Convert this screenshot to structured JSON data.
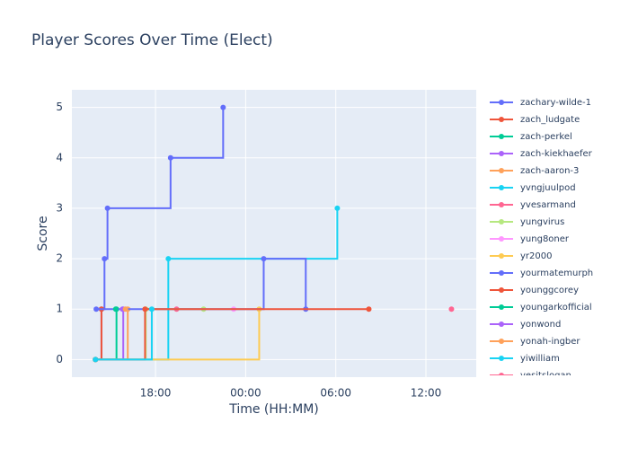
{
  "chart_data": {
    "type": "line",
    "line_shape": "hv",
    "title": "Player Scores Over Time (Elect)",
    "x_label": "Time (HH:MM)",
    "y_label": "Score",
    "xlim": [
      12.43,
      39.35
    ],
    "ylim": [
      -0.35,
      5.35
    ],
    "xticks": [
      {
        "value": 18,
        "label": "18:00"
      },
      {
        "value": 24,
        "label": "00:00"
      },
      {
        "value": 30,
        "label": "06:00"
      },
      {
        "value": 36,
        "label": "12:00"
      }
    ],
    "yticks": [
      0,
      1,
      2,
      3,
      4,
      5
    ],
    "grid": true,
    "legend": "right",
    "series": [
      {
        "name": "zachary-wilde-1",
        "color": "#636efa",
        "x": [
          14.0,
          14.4,
          14.6,
          14.8,
          19.0,
          22.5
        ],
        "values": [
          0,
          1,
          2,
          3,
          4,
          5
        ]
      },
      {
        "name": "zach_ludgate",
        "color": "#EF553B",
        "x": [
          14.0,
          14.4
        ],
        "values": [
          0,
          1
        ]
      },
      {
        "name": "zach-perkel",
        "color": "#00cc96",
        "x": [
          14.0,
          15.4
        ],
        "values": [
          0,
          1
        ]
      },
      {
        "name": "zach-kiekhaefer",
        "color": "#ab63fa",
        "x": [
          14.0,
          15.85
        ],
        "values": [
          0,
          1
        ]
      },
      {
        "name": "zach-aaron-3",
        "color": "#FFA15A",
        "x": [
          14.0,
          16.15
        ],
        "values": [
          0,
          1
        ]
      },
      {
        "name": "yvngjuulpod",
        "color": "#19d3f3",
        "x": [
          14.0,
          18.85,
          30.1
        ],
        "values": [
          0,
          2,
          3
        ]
      },
      {
        "name": "yvesarmand",
        "color": "#FF6692",
        "x": [
          19.4
        ],
        "values": [
          1
        ]
      },
      {
        "name": "yungvirus",
        "color": "#B6E880",
        "x": [
          14.0,
          17.35,
          21.2
        ],
        "values": [
          0,
          1,
          1
        ]
      },
      {
        "name": "yung8oner",
        "color": "#FF97FF",
        "x": [
          23.2
        ],
        "values": [
          1
        ]
      },
      {
        "name": "yr2000",
        "color": "#FECB52",
        "x": [
          14.0,
          24.9
        ],
        "values": [
          0,
          1
        ]
      },
      {
        "name": "yourmatemurph",
        "color": "#636efa",
        "x": [
          14.05,
          25.2,
          28.0
        ],
        "values": [
          1,
          2,
          1
        ]
      },
      {
        "name": "younggcorey",
        "color": "#EF553B",
        "x": [
          14.0,
          17.3,
          32.2
        ],
        "values": [
          0,
          1,
          1
        ]
      },
      {
        "name": "youngarkofficial",
        "color": "#00cc96",
        "x": [
          15.35
        ],
        "values": [
          1
        ]
      },
      {
        "name": "yonwond",
        "color": "#ab63fa",
        "x": [
          15.8
        ],
        "values": [
          1
        ]
      },
      {
        "name": "yonah-ingber",
        "color": "#FFA15A",
        "x": [
          16.0
        ],
        "values": [
          1
        ]
      },
      {
        "name": "yiwilliam",
        "color": "#19d3f3",
        "x": [
          14.0,
          17.75
        ],
        "values": [
          0,
          1
        ]
      },
      {
        "name": "yesitslogan",
        "color": "#FF6692",
        "x": [
          37.7
        ],
        "values": [
          1
        ]
      }
    ]
  }
}
